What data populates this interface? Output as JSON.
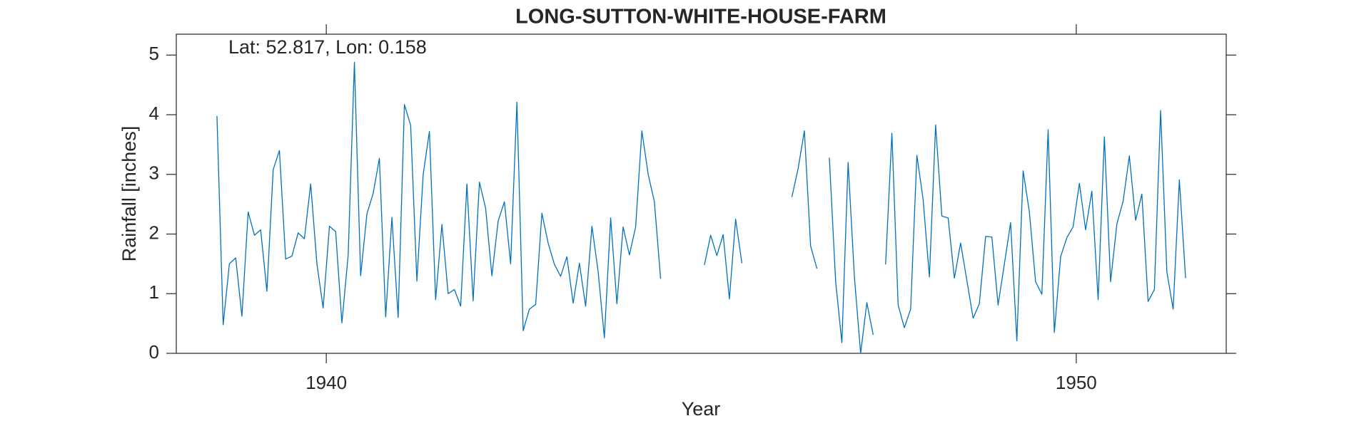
{
  "chart_data": {
    "type": "line",
    "title": "LONG-SUTTON-WHITE-HOUSE-FARM",
    "annotation": "Lat: 52.817, Lon: 0.158",
    "x_label": "Year",
    "y_label": "Rainfall [inches]",
    "xlim": [
      1938,
      1952
    ],
    "xticks": [
      1940,
      1950
    ],
    "ylim": [
      0,
      5.35
    ],
    "yticks": [
      0,
      1,
      2,
      3,
      4,
      5
    ],
    "grid": false,
    "x": [
      1938.542,
      1938.625,
      1938.708,
      1938.792,
      1938.875,
      1938.958,
      1939.042,
      1939.125,
      1939.208,
      1939.292,
      1939.375,
      1939.458,
      1939.542,
      1939.625,
      1939.708,
      1939.792,
      1939.875,
      1939.958,
      1940.042,
      1940.125,
      1940.208,
      1940.292,
      1940.375,
      1940.458,
      1940.542,
      1940.625,
      1940.708,
      1940.792,
      1940.875,
      1940.958,
      1941.042,
      1941.125,
      1941.208,
      1941.292,
      1941.375,
      1941.458,
      1941.542,
      1941.625,
      1941.708,
      1941.792,
      1941.875,
      1941.958,
      1942.042,
      1942.125,
      1942.208,
      1942.292,
      1942.375,
      1942.458,
      1942.542,
      1942.625,
      1942.708,
      1942.792,
      1942.875,
      1942.958,
      1943.042,
      1943.125,
      1943.208,
      1943.292,
      1943.375,
      1943.458,
      1943.542,
      1943.625,
      1943.708,
      1943.792,
      1943.875,
      1943.958,
      1944.042,
      1944.125,
      1944.208,
      1944.292,
      1944.375,
      1944.458,
      1944.542,
      1944.625,
      1944.708,
      1944.792,
      1944.875,
      1944.958,
      1945.042,
      1945.125,
      1945.208,
      1945.292,
      1945.375,
      1945.458,
      1945.542,
      1945.625,
      1945.708,
      1945.792,
      1945.875,
      1945.958,
      1946.042,
      1946.125,
      1946.208,
      1946.292,
      1946.375,
      1946.458,
      1946.542,
      1946.625,
      1946.708,
      1946.792,
      1946.875,
      1946.958,
      1947.042,
      1947.125,
      1947.208,
      1947.292,
      1947.375,
      1947.458,
      1947.542,
      1947.625,
      1947.708,
      1947.792,
      1947.875,
      1947.958,
      1948.042,
      1948.125,
      1948.208,
      1948.292,
      1948.375,
      1948.458,
      1948.542,
      1948.625,
      1948.708,
      1948.792,
      1948.875,
      1948.958,
      1949.042,
      1949.125,
      1949.208,
      1949.292,
      1949.375,
      1949.458,
      1949.542,
      1949.625,
      1949.708,
      1949.792,
      1949.875,
      1949.958,
      1950.042,
      1950.125,
      1950.208,
      1950.292,
      1950.375,
      1950.458,
      1950.542,
      1950.625,
      1950.708,
      1950.792,
      1950.875,
      1950.958,
      1951.042,
      1951.125,
      1951.208,
      1951.292,
      1951.375,
      1951.458
    ],
    "series": [
      {
        "color": "#0072bd",
        "values": [
          3.98,
          0.48,
          1.5,
          1.6,
          0.62,
          2.37,
          1.98,
          2.07,
          1.04,
          3.08,
          3.4,
          1.58,
          1.63,
          2.02,
          1.92,
          2.84,
          1.5,
          0.76,
          2.13,
          2.04,
          0.51,
          1.65,
          4.88,
          1.3,
          2.34,
          2.68,
          3.27,
          0.61,
          2.28,
          0.6,
          4.17,
          3.82,
          1.21,
          3.0,
          3.72,
          0.9,
          2.16,
          1.0,
          1.07,
          0.79,
          2.84,
          0.88,
          2.87,
          2.43,
          1.3,
          2.22,
          2.54,
          1.5,
          4.21,
          0.38,
          0.74,
          0.82,
          2.35,
          1.85,
          1.49,
          1.29,
          1.62,
          0.84,
          1.51,
          0.79,
          2.13,
          1.37,
          0.26,
          2.27,
          0.83,
          2.12,
          1.65,
          2.12,
          3.73,
          3.0,
          2.54,
          1.25,
          null,
          null,
          null,
          null,
          null,
          null,
          1.48,
          1.98,
          1.64,
          1.99,
          0.91,
          2.25,
          1.51,
          null,
          null,
          null,
          null,
          null,
          null,
          null,
          2.62,
          3.1,
          3.73,
          1.8,
          1.42,
          null,
          3.28,
          1.2,
          0.18,
          3.2,
          1.28,
          0.0,
          0.85,
          0.31,
          null,
          1.49,
          3.69,
          0.81,
          0.43,
          0.74,
          3.32,
          2.58,
          1.28,
          3.83,
          2.3,
          2.27,
          1.26,
          1.85,
          1.22,
          0.59,
          0.83,
          1.96,
          1.95,
          0.81,
          1.5,
          2.19,
          0.21,
          3.06,
          2.37,
          1.2,
          0.99,
          3.75,
          0.35,
          1.62,
          1.94,
          2.12,
          2.85,
          2.07,
          2.72,
          0.9,
          3.63,
          1.2,
          2.17,
          2.55,
          3.31,
          2.23,
          2.67,
          0.87,
          1.07,
          4.07,
          1.37,
          0.74,
          2.91,
          1.26
        ]
      }
    ]
  }
}
